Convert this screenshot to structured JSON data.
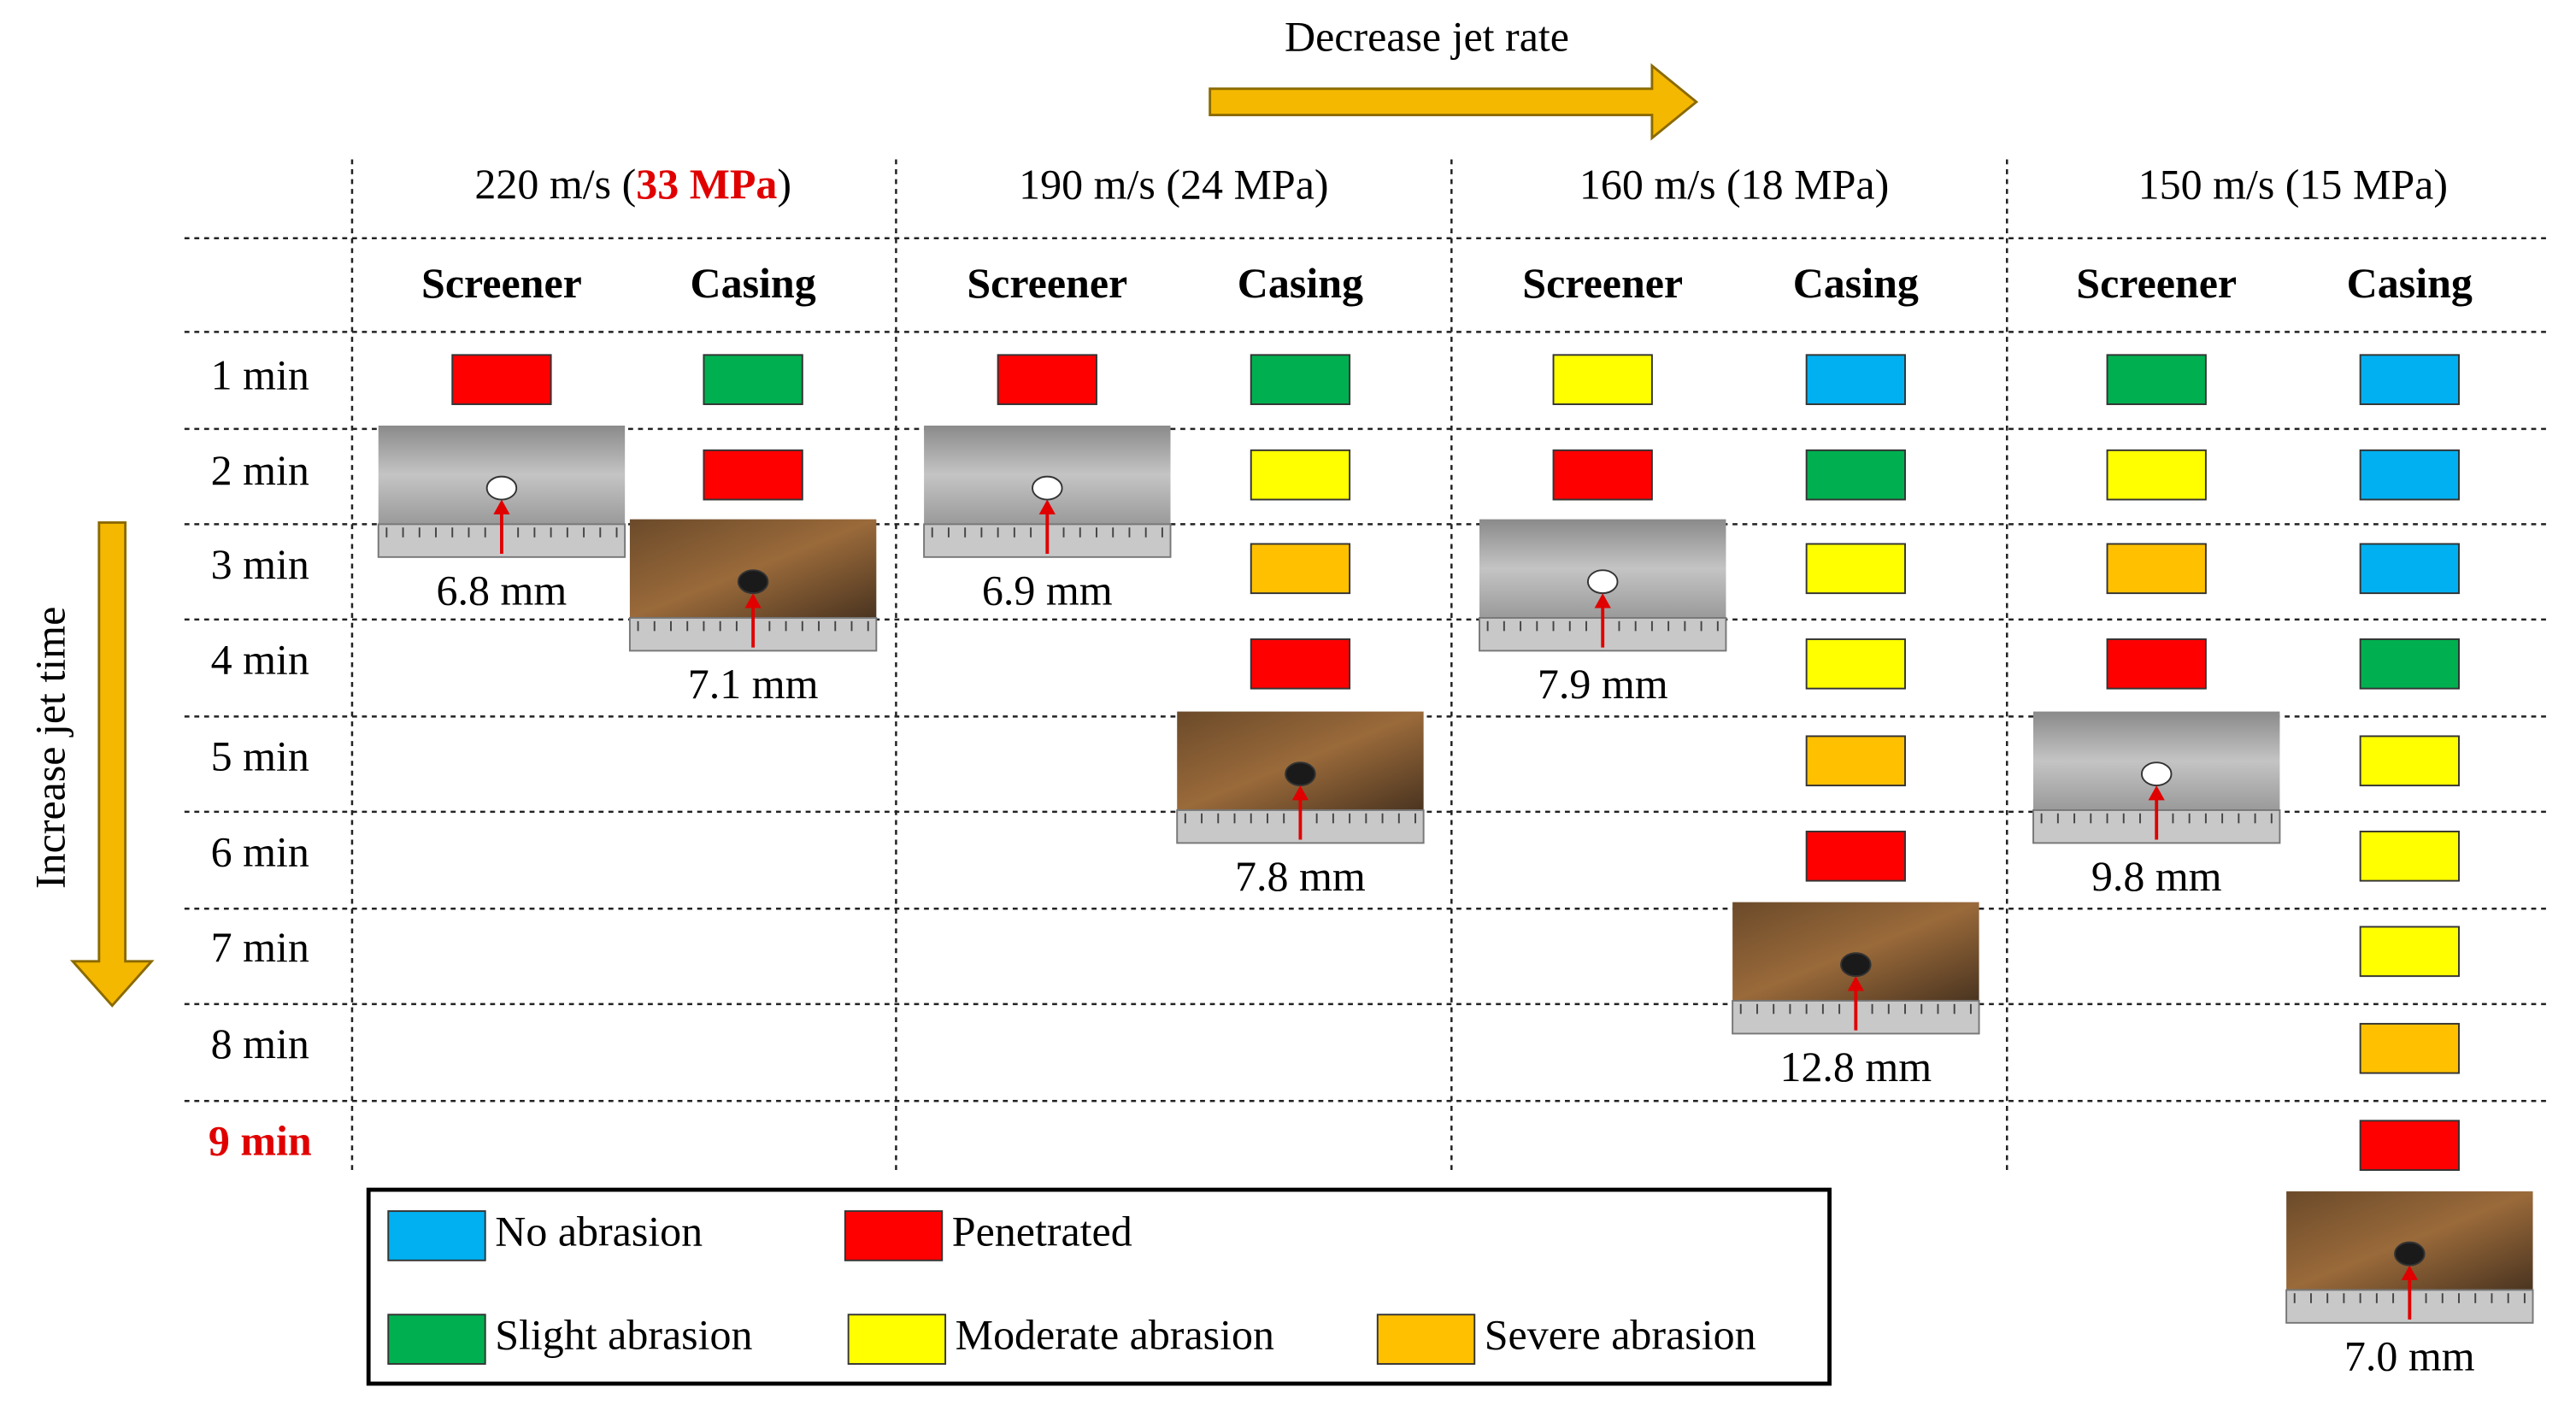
{
  "top_arrow": {
    "label": "Decrease jet rate"
  },
  "side_arrow": {
    "label": "Increase jet time"
  },
  "rows": [
    "1 min",
    "2 min",
    "3 min",
    "4 min",
    "5 min",
    "6 min",
    "7 min",
    "8 min",
    "9 min"
  ],
  "legend": [
    {
      "name": "No abrasion",
      "color": "#00b0f0"
    },
    {
      "name": "Penetrated",
      "color": "#ff0000"
    },
    {
      "name": "Slight abrasion",
      "color": "#00b050"
    },
    {
      "name": "Moderate abrasion",
      "color": "#ffff00"
    },
    {
      "name": "Severe abrasion",
      "color": "#ffc000"
    }
  ],
  "groups": [
    {
      "heading": {
        "prefix": "220 m/s (",
        "highlight": "33 MPa",
        "suffix": ")"
      },
      "columns": [
        {
          "name": "Screener",
          "material": "screen",
          "cells": [
            "Penetrated"
          ],
          "hole": "6.8 mm"
        },
        {
          "name": "Casing",
          "material": "casing",
          "cells": [
            "Slight abrasion",
            "Penetrated"
          ],
          "hole": "7.1 mm"
        }
      ]
    },
    {
      "heading": {
        "text": "190 m/s (24 MPa)"
      },
      "columns": [
        {
          "name": "Screener",
          "material": "screen",
          "cells": [
            "Penetrated"
          ],
          "hole": "6.9 mm"
        },
        {
          "name": "Casing",
          "material": "casing",
          "cells": [
            "Slight abrasion",
            "Moderate abrasion",
            "Severe abrasion",
            "Penetrated"
          ],
          "hole": "7.8 mm"
        }
      ]
    },
    {
      "heading": {
        "text": "160 m/s (18 MPa)"
      },
      "columns": [
        {
          "name": "Screener",
          "material": "screen",
          "cells": [
            "Moderate abrasion",
            "Penetrated"
          ],
          "hole": "7.9 mm"
        },
        {
          "name": "Casing",
          "material": "casing",
          "cells": [
            "No abrasion",
            "Slight abrasion",
            "Moderate abrasion",
            "Moderate abrasion",
            "Severe abrasion",
            "Penetrated"
          ],
          "hole": "12.8 mm"
        }
      ]
    },
    {
      "heading": {
        "text": "150 m/s (15 MPa)"
      },
      "columns": [
        {
          "name": "Screener",
          "material": "screen",
          "cells": [
            "Slight abrasion",
            "Moderate abrasion",
            "Severe abrasion",
            "Penetrated"
          ],
          "hole": "9.8 mm"
        },
        {
          "name": "Casing",
          "material": "casing",
          "cells": [
            "No abrasion",
            "No abrasion",
            "No abrasion",
            "Slight abrasion",
            "Moderate abrasion",
            "Moderate abrasion",
            "Moderate abrasion",
            "Severe abrasion",
            "Penetrated"
          ],
          "hole": "7.0 mm"
        }
      ]
    }
  ]
}
